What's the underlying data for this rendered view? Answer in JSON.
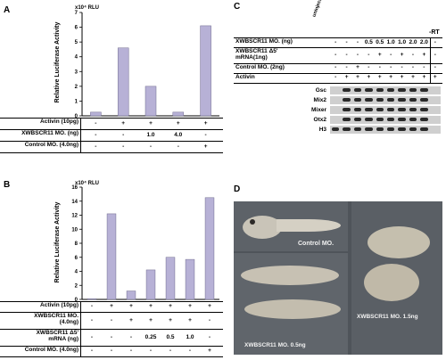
{
  "panels": {
    "A": {
      "letter": "A",
      "unit": "x10⁴ RLU",
      "ylabel": "Relative Luciferase Activity",
      "rows": [
        {
          "label": "Activin (10pg)",
          "cells": [
            "-",
            "+",
            "+",
            "+",
            "+"
          ]
        },
        {
          "label": "XWBSCR11 MO. (ng)",
          "cells": [
            "-",
            "-",
            "1.0",
            "4.0",
            "-"
          ]
        },
        {
          "label": "Control MO. (4.0ng)",
          "cells": [
            "-",
            "-",
            "-",
            "-",
            "+"
          ]
        }
      ]
    },
    "B": {
      "letter": "B",
      "unit": "x10⁴ RLU",
      "ylabel": "Relative Luciferase Activity",
      "rows": [
        {
          "label": "Activin (10pg)",
          "cells": [
            "-",
            "+",
            "+",
            "+",
            "+",
            "+",
            "+"
          ]
        },
        {
          "label": "XWBSCR11 MO.",
          "sub": "(4.0ng)",
          "cells": [
            "-",
            "-",
            "+",
            "+",
            "+",
            "+",
            "-"
          ]
        },
        {
          "label": "XWBSCR11 Δ5'",
          "sub": "mRNA (ng)",
          "cells": [
            "-",
            "-",
            "-",
            "0.25",
            "0.5",
            "1.0",
            "-"
          ]
        },
        {
          "label": "Control MO. (4.0ng)",
          "cells": [
            "-",
            "-",
            "-",
            "-",
            "-",
            "-",
            "+"
          ]
        }
      ]
    },
    "C": {
      "letter": "C",
      "uninjected": "uninjected",
      "minus_rt": "-RT",
      "rows": [
        {
          "label": "XWBSCR11 MO. (ng)",
          "cells": [
            "-",
            "-",
            "-",
            "0.5",
            "0.5",
            "1.0",
            "1.0",
            "2.0",
            "2.0",
            "-"
          ]
        },
        {
          "label": "XWBSCR11 Δ5'",
          "sub": "mRNA(1ng)",
          "cells": [
            "-",
            "-",
            "-",
            "-",
            "+",
            "-",
            "+",
            "-",
            "+",
            "-"
          ]
        },
        {
          "label": "Control MO. (2ng)",
          "cells": [
            "-",
            "-",
            "+",
            "-",
            "-",
            "-",
            "-",
            "-",
            "-",
            "-"
          ]
        },
        {
          "label": "Activin",
          "cells": [
            "-",
            "+",
            "+",
            "+",
            "+",
            "+",
            "+",
            "+",
            "+",
            "+"
          ]
        }
      ],
      "genes": [
        "Gsc",
        "Mix2",
        "Mixer",
        "Otx2",
        "H3"
      ]
    },
    "D": {
      "letter": "D",
      "labels": [
        "Control MO.",
        "XWBSCR11 MO. 0.5ng",
        "XWBSCR11 MO. 1.5ng"
      ]
    }
  },
  "chart_data": [
    {
      "type": "bar",
      "panel": "A",
      "categories": [
        "1",
        "2",
        "3",
        "4",
        "5"
      ],
      "values": [
        0.25,
        4.6,
        2.0,
        0.25,
        6.1
      ],
      "ylim": [
        0,
        7
      ],
      "yticks": [
        0,
        1,
        2,
        3,
        4,
        5,
        6,
        7
      ],
      "ylabel": "Relative Luciferase Activity",
      "unit": "x10⁴ RLU",
      "bar_color": "#b7b1d6"
    },
    {
      "type": "bar",
      "panel": "B",
      "categories": [
        "1",
        "2",
        "3",
        "4",
        "5",
        "6",
        "7"
      ],
      "values": [
        0.1,
        12.2,
        1.2,
        4.2,
        6.0,
        5.7,
        14.5
      ],
      "ylim": [
        0,
        16
      ],
      "yticks": [
        0,
        2,
        4,
        6,
        8,
        10,
        12,
        14,
        16
      ],
      "ylabel": "Relative Luciferase Activity",
      "unit": "x10⁴ RLU",
      "bar_color": "#b7b1d6"
    }
  ]
}
